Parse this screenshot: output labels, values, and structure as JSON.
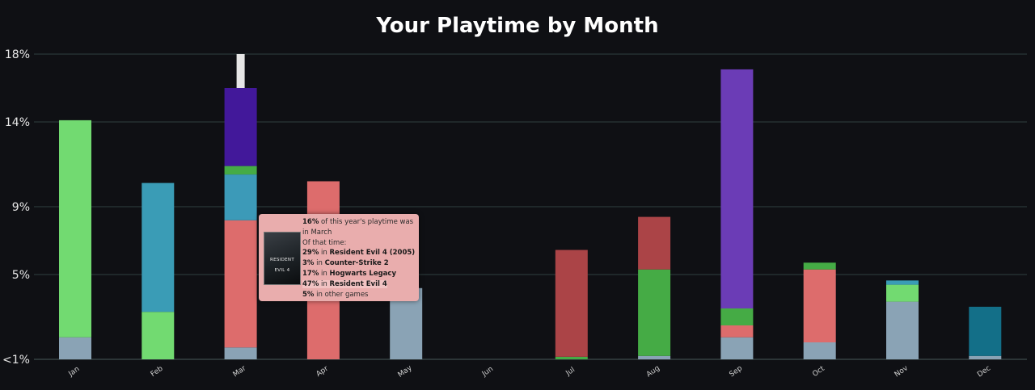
{
  "chart_data": {
    "type": "bar",
    "stacked": true,
    "title": "Your Playtime by Month",
    "xlabel": "",
    "ylabel": "",
    "categories": [
      "Jan",
      "Feb",
      "Mar",
      "Apr",
      "May",
      "Jun",
      "Jul",
      "Aug",
      "Sep",
      "Oct",
      "Nov",
      "Dec"
    ],
    "y_ticks": [
      {
        "value": 0,
        "label": "<1%"
      },
      {
        "value": 5,
        "label": "5%"
      },
      {
        "value": 9,
        "label": "9%"
      },
      {
        "value": 14,
        "label": "14%"
      },
      {
        "value": 18,
        "label": "18%"
      }
    ],
    "ylim": [
      0,
      18
    ],
    "grid": true,
    "series": [
      {
        "color": "#8aa3b5",
        "values": [
          1.3,
          0,
          0.7,
          0,
          4.2,
          0,
          0,
          0.2,
          1.3,
          1.0,
          3.4,
          0.2
        ]
      },
      {
        "color": "#72da71",
        "values": [
          12.8,
          2.8,
          0,
          0,
          0,
          0,
          0,
          0,
          0,
          0,
          1.0,
          0
        ]
      },
      {
        "color": "#3a9cb6",
        "values": [
          0,
          7.6,
          0,
          0,
          0,
          0,
          0,
          0,
          0,
          0,
          0.25,
          0
        ]
      },
      {
        "color": "#dd6c6c",
        "values": [
          0,
          0,
          7.5,
          10.5,
          0,
          0,
          0,
          0,
          0.7,
          4.3,
          0,
          0
        ]
      },
      {
        "color": "#3c9ab8",
        "values": [
          0,
          0,
          2.7,
          0,
          0,
          0,
          0,
          0,
          0,
          0,
          0,
          0
        ]
      },
      {
        "color": "#45ab45",
        "values": [
          0,
          0,
          0.5,
          0,
          0,
          0,
          0.15,
          5.1,
          1.0,
          0.4,
          0,
          0
        ]
      },
      {
        "color": "#42189a",
        "values": [
          0,
          0,
          4.6,
          0,
          0,
          0,
          0,
          0,
          0,
          0,
          0,
          0
        ]
      },
      {
        "color": "#ab4447",
        "values": [
          0,
          0,
          0,
          0,
          0,
          0,
          6.3,
          3.1,
          0,
          0,
          0,
          0
        ]
      },
      {
        "color": "#6b3cb6",
        "values": [
          0,
          0,
          0,
          0,
          0,
          0,
          0,
          0,
          14.1,
          0,
          0,
          0
        ]
      },
      {
        "color": "#136f88",
        "values": [
          0,
          0,
          0,
          0,
          0,
          0,
          0,
          0,
          0,
          0,
          0,
          2.9
        ]
      }
    ],
    "highlight": {
      "category": "Mar",
      "color": "#e6e6e6"
    }
  },
  "tooltip": {
    "cover_text": "RESIDENT EVIL 4",
    "l1_pct": "16%",
    "l1_text": " of this year's playtime was in March",
    "l2_text": "Of that time:",
    "rows": [
      {
        "pct": "29%",
        "mid": " in ",
        "game": "Resident Evil 4 (2005)"
      },
      {
        "pct": "3%",
        "mid": " in ",
        "game": "Counter-Strike 2"
      },
      {
        "pct": "17%",
        "mid": " in ",
        "game": "Hogwarts Legacy"
      },
      {
        "pct": "47%",
        "mid": " in ",
        "game": "Resident Evil 4"
      },
      {
        "pct": "5%",
        "mid": " in ",
        "game": "other games"
      }
    ]
  }
}
